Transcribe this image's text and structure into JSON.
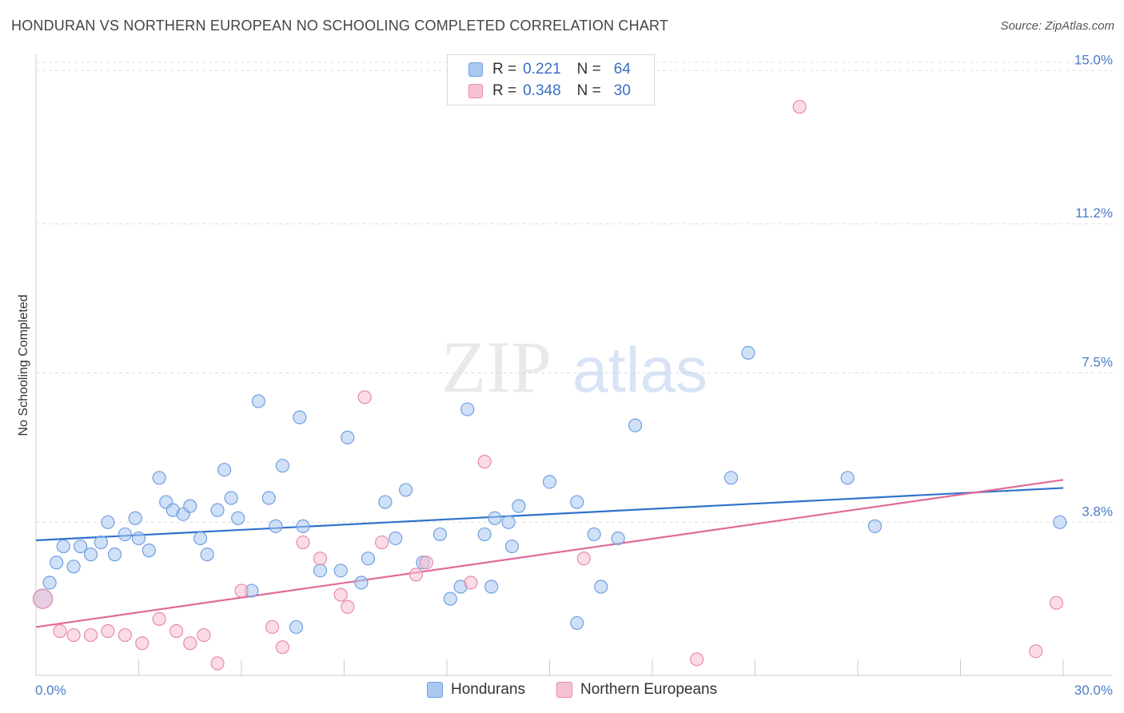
{
  "header": {
    "title": "HONDURAN VS NORTHERN EUROPEAN NO SCHOOLING COMPLETED CORRELATION CHART",
    "source": "Source: ZipAtlas.com"
  },
  "watermark": {
    "zip": "ZIP",
    "atlas": "atlas"
  },
  "legend": {
    "rows": [
      {
        "r_label": "R =",
        "r_value": "0.221",
        "n_label": "N =",
        "n_value": "64",
        "color": "#aac8f0",
        "border": "#6f9fe0"
      },
      {
        "r_label": "R =",
        "r_value": "0.348",
        "n_label": "N =",
        "n_value": "30",
        "color": "#f7c0d2",
        "border": "#e88aaa"
      }
    ]
  },
  "bottom_legend": {
    "items": [
      {
        "label": "Hondurans",
        "color": "#aac8f0",
        "border": "#6f9fe0"
      },
      {
        "label": "Northern Europeans",
        "color": "#f7c0d2",
        "border": "#e88aaa"
      }
    ]
  },
  "chart_data": {
    "type": "scatter",
    "title": "HONDURAN VS NORTHERN EUROPEAN NO SCHOOLING COMPLETED CORRELATION CHART",
    "xlabel": "",
    "ylabel": "No Schooling Completed",
    "xlim": [
      0,
      30
    ],
    "ylim": [
      0,
      15.6
    ],
    "x_tick_labels": [
      "0.0%",
      "30.0%"
    ],
    "y_ticks": [
      3.8,
      7.5,
      11.2,
      15.0
    ],
    "y_tick_labels": [
      "3.8%",
      "7.5%",
      "11.2%",
      "15.0%"
    ],
    "grid": true,
    "legend_position": "top-center",
    "series": [
      {
        "name": "Hondurans",
        "color": "#6f9fe0",
        "fill": "#aac8f0",
        "trend": {
          "x": [
            0,
            30
          ],
          "y": [
            3.35,
            4.65
          ]
        },
        "points": [
          [
            0.2,
            1.9
          ],
          [
            0.4,
            2.3
          ],
          [
            0.6,
            2.8
          ],
          [
            0.8,
            3.2
          ],
          [
            1.1,
            2.7
          ],
          [
            1.3,
            3.2
          ],
          [
            1.6,
            3.0
          ],
          [
            1.9,
            3.3
          ],
          [
            2.1,
            3.8
          ],
          [
            2.3,
            3.0
          ],
          [
            2.6,
            3.5
          ],
          [
            2.9,
            3.9
          ],
          [
            3.0,
            3.4
          ],
          [
            3.3,
            3.1
          ],
          [
            3.6,
            4.9
          ],
          [
            3.8,
            4.3
          ],
          [
            4.0,
            4.1
          ],
          [
            4.3,
            4.0
          ],
          [
            4.5,
            4.2
          ],
          [
            4.8,
            3.4
          ],
          [
            5.0,
            3.0
          ],
          [
            5.3,
            4.1
          ],
          [
            5.5,
            5.1
          ],
          [
            5.7,
            4.4
          ],
          [
            5.9,
            3.9
          ],
          [
            6.3,
            2.1
          ],
          [
            6.5,
            6.8
          ],
          [
            6.8,
            4.4
          ],
          [
            7.0,
            3.7
          ],
          [
            7.2,
            5.2
          ],
          [
            7.6,
            1.2
          ],
          [
            7.7,
            6.4
          ],
          [
            7.8,
            3.7
          ],
          [
            8.3,
            2.6
          ],
          [
            8.9,
            2.6
          ],
          [
            9.1,
            5.9
          ],
          [
            9.5,
            2.3
          ],
          [
            9.7,
            2.9
          ],
          [
            10.2,
            4.3
          ],
          [
            10.5,
            3.4
          ],
          [
            10.8,
            4.6
          ],
          [
            11.3,
            2.8
          ],
          [
            11.8,
            3.5
          ],
          [
            12.1,
            1.9
          ],
          [
            12.4,
            2.2
          ],
          [
            12.6,
            6.6
          ],
          [
            13.1,
            3.5
          ],
          [
            13.3,
            2.2
          ],
          [
            13.4,
            3.9
          ],
          [
            13.8,
            3.8
          ],
          [
            13.9,
            3.2
          ],
          [
            14.1,
            4.2
          ],
          [
            15.0,
            4.8
          ],
          [
            15.8,
            4.3
          ],
          [
            15.8,
            1.3
          ],
          [
            16.3,
            3.5
          ],
          [
            16.5,
            2.2
          ],
          [
            17.0,
            3.4
          ],
          [
            17.5,
            6.2
          ],
          [
            20.3,
            4.9
          ],
          [
            20.8,
            8.0
          ],
          [
            23.7,
            4.9
          ],
          [
            24.5,
            3.7
          ],
          [
            29.9,
            3.8
          ]
        ]
      },
      {
        "name": "Northern Europeans",
        "color": "#e88aaa",
        "fill": "#f7c0d2",
        "trend": {
          "x": [
            0,
            30
          ],
          "y": [
            1.2,
            4.85
          ]
        },
        "points": [
          [
            0.2,
            1.9
          ],
          [
            0.7,
            1.1
          ],
          [
            1.1,
            1.0
          ],
          [
            1.6,
            1.0
          ],
          [
            2.1,
            1.1
          ],
          [
            2.6,
            1.0
          ],
          [
            3.1,
            0.8
          ],
          [
            3.6,
            1.4
          ],
          [
            4.1,
            1.1
          ],
          [
            4.5,
            0.8
          ],
          [
            4.9,
            1.0
          ],
          [
            5.3,
            0.3
          ],
          [
            6.0,
            2.1
          ],
          [
            6.9,
            1.2
          ],
          [
            7.2,
            0.7
          ],
          [
            7.8,
            3.3
          ],
          [
            8.3,
            2.9
          ],
          [
            8.9,
            2.0
          ],
          [
            9.1,
            1.7
          ],
          [
            9.6,
            6.9
          ],
          [
            10.1,
            3.3
          ],
          [
            11.1,
            2.5
          ],
          [
            11.4,
            2.8
          ],
          [
            12.7,
            2.3
          ],
          [
            13.1,
            5.3
          ],
          [
            16.0,
            2.9
          ],
          [
            19.3,
            0.4
          ],
          [
            22.3,
            14.1
          ],
          [
            29.2,
            0.6
          ],
          [
            29.8,
            1.8
          ]
        ]
      }
    ]
  }
}
